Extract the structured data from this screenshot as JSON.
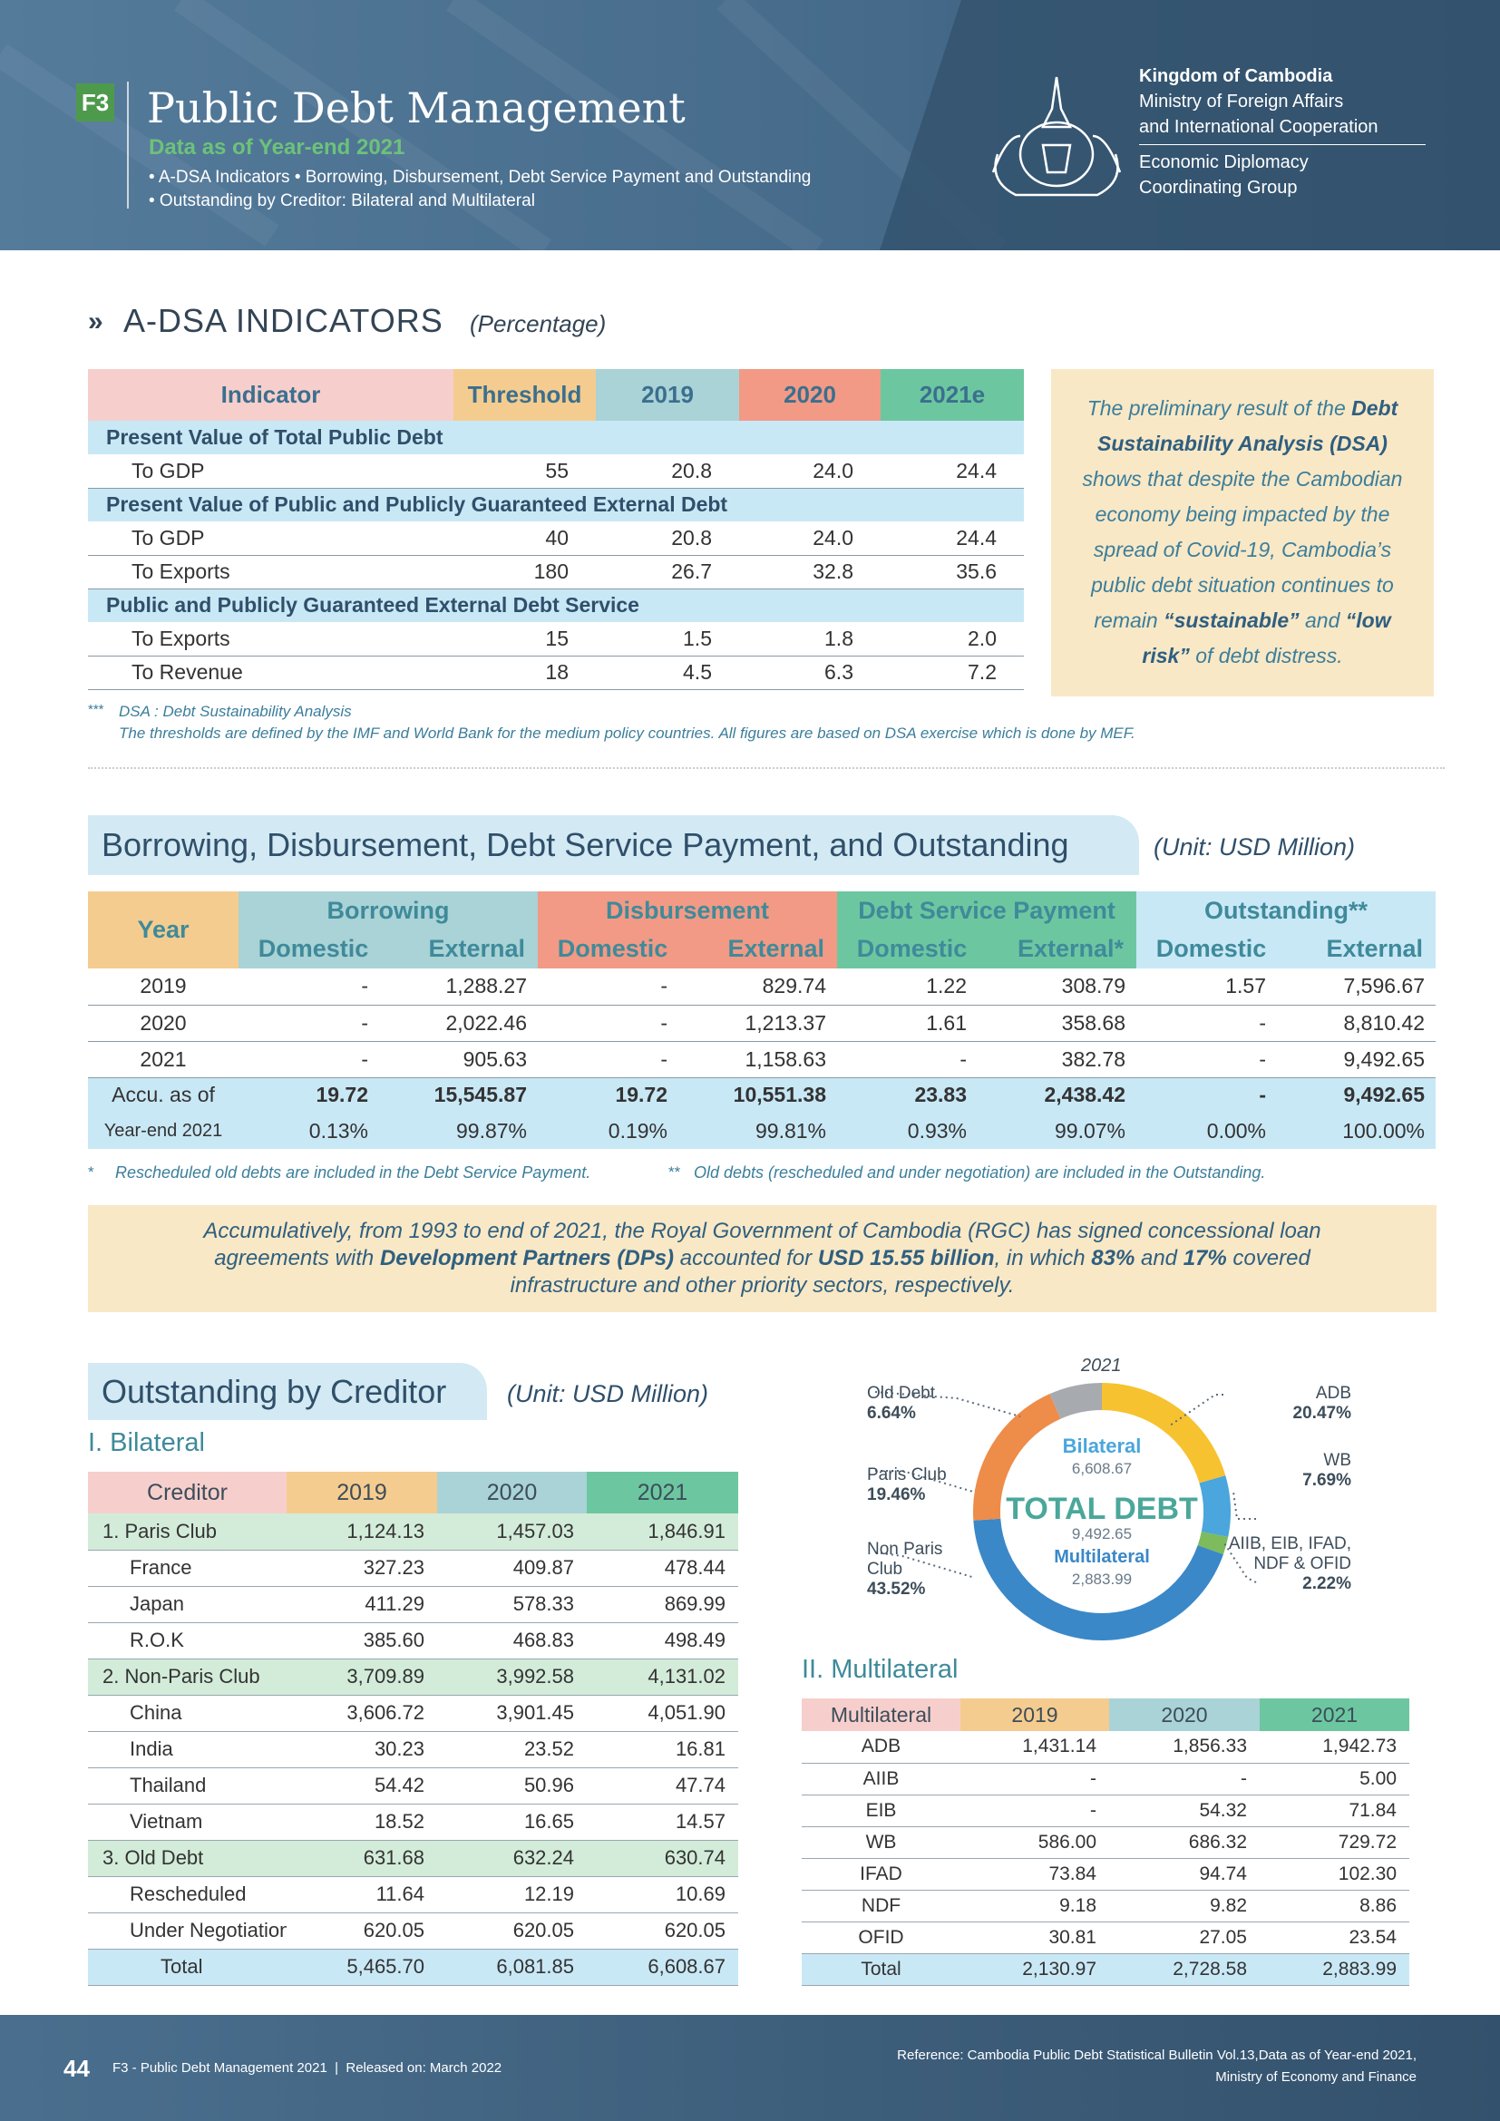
{
  "header": {
    "badge": "F3",
    "title": "Public Debt Management",
    "subtitle": "Data as of Year-end 2021",
    "bullets": [
      "• A-DSA Indicators • Borrowing, Disbursement, Debt Service Payment and Outstanding",
      "• Outstanding by Creditor: Bilateral and Multilateral"
    ],
    "org": [
      "Kingdom of Cambodia",
      "Ministry of Foreign Affairs",
      "and International Cooperation"
    ],
    "group": [
      "Economic Diplomacy",
      "Coordinating Group"
    ]
  },
  "adsa": {
    "marker": "»",
    "heading": "A-DSA INDICATORS",
    "unit": "(Percentage)",
    "columns": [
      "Indicator",
      "Threshold",
      "2019",
      "2020",
      "2021e"
    ],
    "rows": [
      {
        "group": "Present Value of Total Public Debt"
      },
      {
        "label": "To GDP",
        "values": [
          "55",
          "20.8",
          "24.0",
          "24.4"
        ]
      },
      {
        "group": "Present Value of Public and Publicly Guaranteed External Debt"
      },
      {
        "label": "To GDP",
        "values": [
          "40",
          "20.8",
          "24.0",
          "24.4"
        ]
      },
      {
        "label": "To Exports",
        "values": [
          "180",
          "26.7",
          "32.8",
          "35.6"
        ]
      },
      {
        "group": "Public and Publicly Guaranteed External Debt Service"
      },
      {
        "label": "To Exports",
        "values": [
          "15",
          "1.5",
          "1.8",
          "2.0"
        ]
      },
      {
        "label": "To Revenue",
        "values": [
          "18",
          "4.5",
          "6.3",
          "7.2"
        ]
      }
    ],
    "note": [
      {
        "text": "The preliminary result of the ",
        "bold": false
      },
      {
        "text": "Debt Sustainability Analysis (DSA)",
        "bold": true
      },
      {
        "text": " shows that despite the Cambodian economy being impacted by the spread of Covid-19, Cambodia’s public debt situation continues to remain ",
        "bold": false
      },
      {
        "text": "“sustainable”",
        "bold": true
      },
      {
        "text": " and ",
        "bold": false
      },
      {
        "text": "“low risk”",
        "bold": true
      },
      {
        "text": " of debt distress.",
        "bold": false
      }
    ],
    "footnote": {
      "mark": "***",
      "lines": [
        "DSA : Debt Sustainability Analysis",
        "The thresholds are defined by the IMF and World Bank for the medium policy countries.  All figures are based on DSA exercise which is done by MEF."
      ]
    }
  },
  "borrowing": {
    "heading": "Borrowing, Disbursement, Debt Service Payment, and Outstanding",
    "unit": "(Unit: USD Million)",
    "year_label": "Year",
    "groups": [
      {
        "name": "Borrowing",
        "cols": [
          "Domestic",
          "External"
        ]
      },
      {
        "name": "Disbursement",
        "cols": [
          "Domestic",
          "External"
        ]
      },
      {
        "name": "Debt Service Payment",
        "cols": [
          "Domestic",
          "External*"
        ]
      },
      {
        "name": "Outstanding**",
        "cols": [
          "Domestic",
          "External"
        ]
      }
    ],
    "rows": [
      {
        "year": "2019",
        "values": [
          "-",
          "1,288.27",
          "-",
          "829.74",
          "1.22",
          "308.79",
          "1.57",
          "7,596.67"
        ]
      },
      {
        "year": "2020",
        "values": [
          "-",
          "2,022.46",
          "-",
          "1,213.37",
          "1.61",
          "358.68",
          "-",
          "8,810.42"
        ]
      },
      {
        "year": "2021",
        "values": [
          "-",
          "905.63",
          "-",
          "1,158.63",
          "-",
          "382.78",
          "-",
          "9,492.65"
        ]
      }
    ],
    "accu": {
      "label": [
        "Accu. as of",
        "Year-end 2021"
      ],
      "rows": [
        [
          "19.72",
          "15,545.87",
          "19.72",
          "10,551.38",
          "23.83",
          "2,438.42",
          "-",
          "9,492.65"
        ],
        [
          "0.13%",
          "99.87%",
          "0.19%",
          "99.81%",
          "0.93%",
          "99.07%",
          "0.00%",
          "100.00%"
        ]
      ]
    },
    "footnotes": [
      {
        "mark": "*",
        "text": "Rescheduled old debts are included in the Debt Service Payment."
      },
      {
        "mark": "**",
        "text": "Old debts (rescheduled and under negotiation) are included in the Outstanding."
      }
    ],
    "summary": [
      {
        "text": "Accumulatively, from 1993 to end of 2021, the Royal Government of Cambodia (RGC) has signed concessional loan agreements with ",
        "bold": false
      },
      {
        "text": "Development Partners (DPs)",
        "bold": true
      },
      {
        "text": " accounted for ",
        "bold": false
      },
      {
        "text": "USD 15.55 billion",
        "bold": true
      },
      {
        "text": ", in which ",
        "bold": false
      },
      {
        "text": "83%",
        "bold": true
      },
      {
        "text": " and ",
        "bold": false
      },
      {
        "text": "17%",
        "bold": true
      },
      {
        "text": " covered infrastructure and other priority sectors, respectively.",
        "bold": false
      }
    ]
  },
  "creditor": {
    "heading": "Outstanding by Creditor",
    "unit": "(Unit: USD Million)",
    "bilateral": {
      "heading": "I. Bilateral",
      "columns": [
        "Creditor",
        "2019",
        "2020",
        "2021"
      ],
      "rows": [
        {
          "label": "1. Paris Club",
          "kind": "group",
          "values": [
            "1,124.13",
            "1,457.03",
            "1,846.91"
          ]
        },
        {
          "label": "France",
          "kind": "item",
          "values": [
            "327.23",
            "409.87",
            "478.44"
          ]
        },
        {
          "label": "Japan",
          "kind": "item",
          "values": [
            "411.29",
            "578.33",
            "869.99"
          ]
        },
        {
          "label": "R.O.K",
          "kind": "item",
          "values": [
            "385.60",
            "468.83",
            "498.49"
          ]
        },
        {
          "label": "2. Non-Paris Club",
          "kind": "group",
          "values": [
            "3,709.89",
            "3,992.58",
            "4,131.02"
          ]
        },
        {
          "label": "China",
          "kind": "item",
          "values": [
            "3,606.72",
            "3,901.45",
            "4,051.90"
          ]
        },
        {
          "label": "India",
          "kind": "item",
          "values": [
            "30.23",
            "23.52",
            "16.81"
          ]
        },
        {
          "label": "Thailand",
          "kind": "item",
          "values": [
            "54.42",
            "50.96",
            "47.74"
          ]
        },
        {
          "label": "Vietnam",
          "kind": "item",
          "values": [
            "18.52",
            "16.65",
            "14.57"
          ]
        },
        {
          "label": "3. Old Debt",
          "kind": "group",
          "values": [
            "631.68",
            "632.24",
            "630.74"
          ]
        },
        {
          "label": "Rescheduled",
          "kind": "item",
          "values": [
            "11.64",
            "12.19",
            "10.69"
          ]
        },
        {
          "label": "Under Negotiation",
          "kind": "item",
          "values": [
            "620.05",
            "620.05",
            "620.05"
          ]
        },
        {
          "label": "Total",
          "kind": "total",
          "values": [
            "5,465.70",
            "6,081.85",
            "6,608.67"
          ]
        }
      ]
    },
    "multilateral": {
      "heading": "II. Multilateral",
      "columns": [
        "Multilateral",
        "2019",
        "2020",
        "2021"
      ],
      "rows": [
        {
          "label": "ADB",
          "kind": "item",
          "values": [
            "1,431.14",
            "1,856.33",
            "1,942.73"
          ]
        },
        {
          "label": "AIIB",
          "kind": "item",
          "values": [
            "-",
            "-",
            "5.00"
          ]
        },
        {
          "label": "EIB",
          "kind": "item",
          "values": [
            "-",
            "54.32",
            "71.84"
          ]
        },
        {
          "label": "WB",
          "kind": "item",
          "values": [
            "586.00",
            "686.32",
            "729.72"
          ]
        },
        {
          "label": "IFAD",
          "kind": "item",
          "values": [
            "73.84",
            "94.74",
            "102.30"
          ]
        },
        {
          "label": "NDF",
          "kind": "item",
          "values": [
            "9.18",
            "9.82",
            "8.86"
          ]
        },
        {
          "label": "OFID",
          "kind": "item",
          "values": [
            "30.81",
            "27.05",
            "23.54"
          ]
        },
        {
          "label": "Total",
          "kind": "total",
          "values": [
            "2,130.97",
            "2,728.58",
            "2,883.99"
          ]
        }
      ]
    }
  },
  "chart_data": {
    "type": "pie",
    "title": "2021",
    "categories": [
      "ADB",
      "WB",
      "AIIB, EIB, IFAD, NDF & OFID",
      "Non Paris Club",
      "Paris Club",
      "Old Debt"
    ],
    "values": [
      20.47,
      7.69,
      2.22,
      43.52,
      19.46,
      6.64
    ],
    "value_labels": [
      "20.47%",
      "7.69%",
      "2.22%",
      "43.52%",
      "19.46%",
      "6.64%"
    ],
    "colors": [
      "#f7c22f",
      "#4aa6dc",
      "#7dbb5c",
      "#3a88c8",
      "#ee8c4a",
      "#a7abb0"
    ],
    "center": {
      "bilateral_label": "Bilateral",
      "bilateral_value": "6,608.67",
      "total_label": "TOTAL DEBT",
      "total_value": "9,492.65",
      "multilateral_label": "Multilateral",
      "multilateral_value": "2,883.99"
    }
  },
  "footer": {
    "page": "44",
    "left": "F3 - Public Debt Management 2021  |  Released on: March 2022",
    "reference": [
      "Reference: Cambodia Public Debt Statistical Bulletin Vol.13,Data as of Year-end 2021,",
      "Ministry of Economy and Finance"
    ]
  }
}
